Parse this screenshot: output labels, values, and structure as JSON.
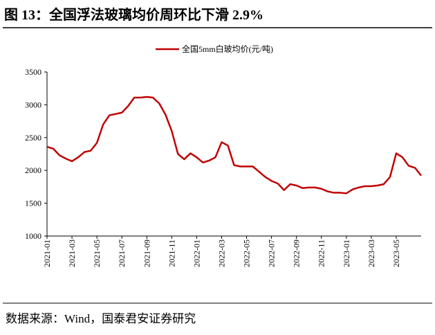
{
  "title": "图 13：全国浮法玻璃均价周环比下滑 2.9%",
  "source": "数据来源：Wind，国泰君安证券研究",
  "chart_data": {
    "type": "line",
    "categories": [
      "2021-01",
      null,
      null,
      null,
      "2021-03",
      null,
      null,
      null,
      "2021-05",
      null,
      null,
      null,
      "2021-07",
      null,
      null,
      null,
      "2021-09",
      null,
      null,
      null,
      "2021-11",
      null,
      null,
      null,
      "2022-01",
      null,
      null,
      null,
      "2022-03",
      null,
      null,
      null,
      "2022-05",
      null,
      null,
      null,
      "2022-07",
      null,
      null,
      null,
      "2022-09",
      null,
      null,
      null,
      "2022-11",
      null,
      null,
      null,
      "2023-01",
      null,
      null,
      null,
      "2023-03",
      null,
      null,
      null,
      "2023-05",
      null,
      null,
      null,
      null
    ],
    "series": [
      {
        "name": "全国5mm白玻均价(元/吨)",
        "color": "#c00000",
        "values": [
          2360,
          2330,
          2230,
          2180,
          2140,
          2200,
          2280,
          2300,
          2420,
          2700,
          2840,
          2860,
          2880,
          2980,
          3110,
          3110,
          3120,
          3110,
          3020,
          2850,
          2600,
          2250,
          2170,
          2260,
          2200,
          2120,
          2150,
          2200,
          2430,
          2380,
          2080,
          2060,
          2060,
          2060,
          1980,
          1900,
          1840,
          1800,
          1700,
          1790,
          1770,
          1730,
          1740,
          1740,
          1720,
          1680,
          1660,
          1660,
          1650,
          1710,
          1740,
          1760,
          1760,
          1770,
          1790,
          1900,
          2260,
          2200,
          2070,
          2040,
          1920
        ]
      }
    ],
    "ylim": [
      1000,
      3500
    ],
    "yticks": [
      1000,
      1500,
      2000,
      2500,
      3000,
      3500
    ],
    "legend": "top"
  }
}
